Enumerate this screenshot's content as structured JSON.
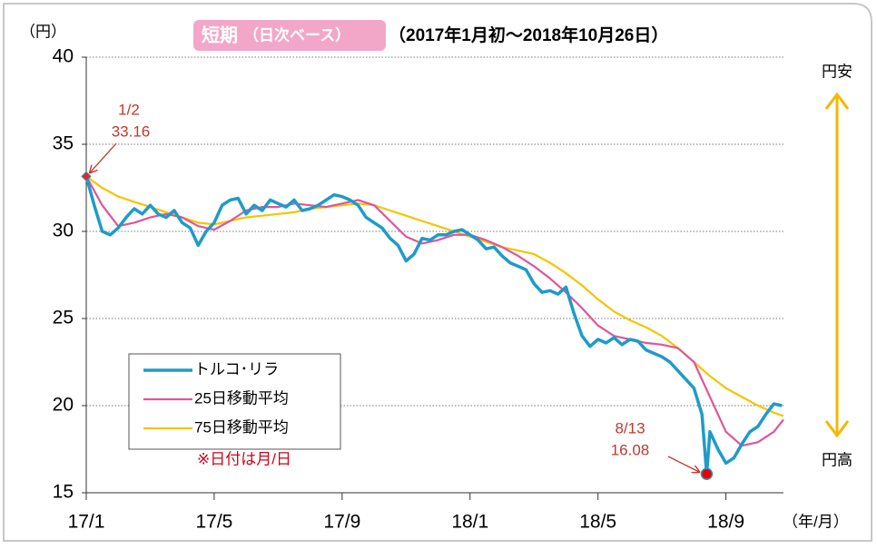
{
  "chart_data": {
    "type": "line",
    "title": "短期",
    "subtitle": "（日次ベース）",
    "period": "（2017年1月初～2018年10月26日）",
    "y_unit": "（円）",
    "x_unit": "（年/月）",
    "upper_label": "円安",
    "lower_label": "円高",
    "note": "※日付は月/日",
    "xlim": [
      0,
      21.8
    ],
    "xticks": [
      {
        "value": 0,
        "label": "17/1"
      },
      {
        "value": 4,
        "label": "17/5"
      },
      {
        "value": 8,
        "label": "17/9"
      },
      {
        "value": 12,
        "label": "18/1"
      },
      {
        "value": 16,
        "label": "18/5"
      },
      {
        "value": 20,
        "label": "18/9"
      }
    ],
    "ylim": [
      15,
      40
    ],
    "yticks": [
      15,
      20,
      25,
      30,
      35,
      40
    ],
    "grid": true,
    "legend": "lower-left",
    "series": [
      {
        "name": "トルコ･リラ",
        "color": "#1e9bc9",
        "x": [
          0,
          0.25,
          0.5,
          0.75,
          1,
          1.25,
          1.5,
          1.75,
          2,
          2.25,
          2.5,
          2.75,
          3,
          3.25,
          3.5,
          3.75,
          4,
          4.25,
          4.5,
          4.75,
          5,
          5.25,
          5.5,
          5.75,
          6,
          6.25,
          6.5,
          6.75,
          7,
          7.25,
          7.5,
          7.75,
          8,
          8.25,
          8.5,
          8.75,
          9,
          9.25,
          9.5,
          9.75,
          10,
          10.25,
          10.5,
          10.75,
          11,
          11.25,
          11.5,
          11.75,
          12,
          12.25,
          12.5,
          12.75,
          13,
          13.25,
          13.5,
          13.75,
          14,
          14.25,
          14.5,
          14.75,
          15,
          15.25,
          15.5,
          15.75,
          16,
          16.25,
          16.5,
          16.75,
          17,
          17.25,
          17.5,
          17.75,
          18,
          18.25,
          18.5,
          18.75,
          19,
          19.25,
          19.4,
          19.5,
          19.75,
          20,
          20.25,
          20.5,
          20.75,
          21,
          21.25,
          21.5,
          21.75
        ],
        "values": [
          33.16,
          31.5,
          30.0,
          29.8,
          30.2,
          30.8,
          31.3,
          31.0,
          31.5,
          31.0,
          30.8,
          31.2,
          30.5,
          30.2,
          29.2,
          30.0,
          30.5,
          31.5,
          31.8,
          31.9,
          31.0,
          31.5,
          31.2,
          31.8,
          31.6,
          31.4,
          31.8,
          31.2,
          31.3,
          31.5,
          31.8,
          32.1,
          32.0,
          31.8,
          31.5,
          30.8,
          30.5,
          30.2,
          29.6,
          29.2,
          28.3,
          28.7,
          29.6,
          29.5,
          29.8,
          29.8,
          30.0,
          30.1,
          29.8,
          29.5,
          29.0,
          29.1,
          28.6,
          28.2,
          28.0,
          27.8,
          27.0,
          26.5,
          26.6,
          26.4,
          26.8,
          25.3,
          24.0,
          23.4,
          23.8,
          23.6,
          23.9,
          23.5,
          23.8,
          23.7,
          23.2,
          23.0,
          22.8,
          22.5,
          22.0,
          21.5,
          21.0,
          19.5,
          16.08,
          18.5,
          17.5,
          16.7,
          17.0,
          17.8,
          18.5,
          18.8,
          19.5,
          20.1,
          20.0
        ]
      },
      {
        "name": "25日移動平均",
        "color": "#e0559b",
        "x": [
          0,
          0.5,
          1,
          1.5,
          2,
          2.5,
          3,
          3.5,
          4,
          4.5,
          5,
          5.5,
          6,
          6.5,
          7,
          7.5,
          8,
          8.5,
          9,
          9.5,
          10,
          10.5,
          11,
          11.5,
          12,
          12.5,
          13,
          13.5,
          14,
          14.5,
          15,
          15.5,
          16,
          16.5,
          17,
          17.5,
          18,
          18.5,
          19,
          19.5,
          20,
          20.5,
          21,
          21.5,
          21.8
        ],
        "values": [
          33.16,
          31.5,
          30.3,
          30.5,
          30.8,
          31.0,
          30.8,
          30.3,
          30.1,
          30.6,
          31.2,
          31.4,
          31.4,
          31.6,
          31.5,
          31.4,
          31.6,
          31.8,
          31.5,
          30.6,
          29.7,
          29.3,
          29.5,
          29.8,
          29.8,
          29.5,
          29.1,
          28.6,
          28.0,
          27.3,
          26.5,
          25.6,
          24.6,
          24.0,
          23.8,
          23.6,
          23.5,
          23.3,
          22.5,
          20.5,
          18.5,
          17.7,
          17.9,
          18.5,
          19.2
        ]
      },
      {
        "name": "75日移動平均",
        "color": "#f5c400",
        "x": [
          0,
          0.5,
          1,
          1.5,
          2,
          2.5,
          3,
          3.5,
          4,
          4.5,
          5,
          5.5,
          6,
          6.5,
          7,
          7.5,
          8,
          8.5,
          9,
          9.5,
          10,
          10.5,
          11,
          11.5,
          12,
          12.5,
          13,
          13.5,
          14,
          14.5,
          15,
          15.5,
          16,
          16.5,
          17,
          17.5,
          18,
          18.5,
          19,
          19.5,
          20,
          20.5,
          21,
          21.5,
          21.8
        ],
        "values": [
          33.16,
          32.5,
          32.0,
          31.7,
          31.4,
          31.1,
          30.8,
          30.5,
          30.4,
          30.6,
          30.8,
          30.9,
          31.0,
          31.1,
          31.3,
          31.4,
          31.5,
          31.6,
          31.5,
          31.2,
          30.9,
          30.6,
          30.3,
          30.0,
          29.7,
          29.4,
          29.1,
          28.9,
          28.7,
          28.2,
          27.6,
          26.9,
          26.1,
          25.4,
          24.9,
          24.5,
          24.0,
          23.3,
          22.5,
          21.7,
          21.0,
          20.5,
          20.0,
          19.6,
          19.4
        ]
      }
    ],
    "annotations": [
      {
        "date": "1/2",
        "value": 33.16,
        "x": 0
      },
      {
        "date": "8/13",
        "value": 16.08,
        "x": 19.4
      }
    ]
  }
}
